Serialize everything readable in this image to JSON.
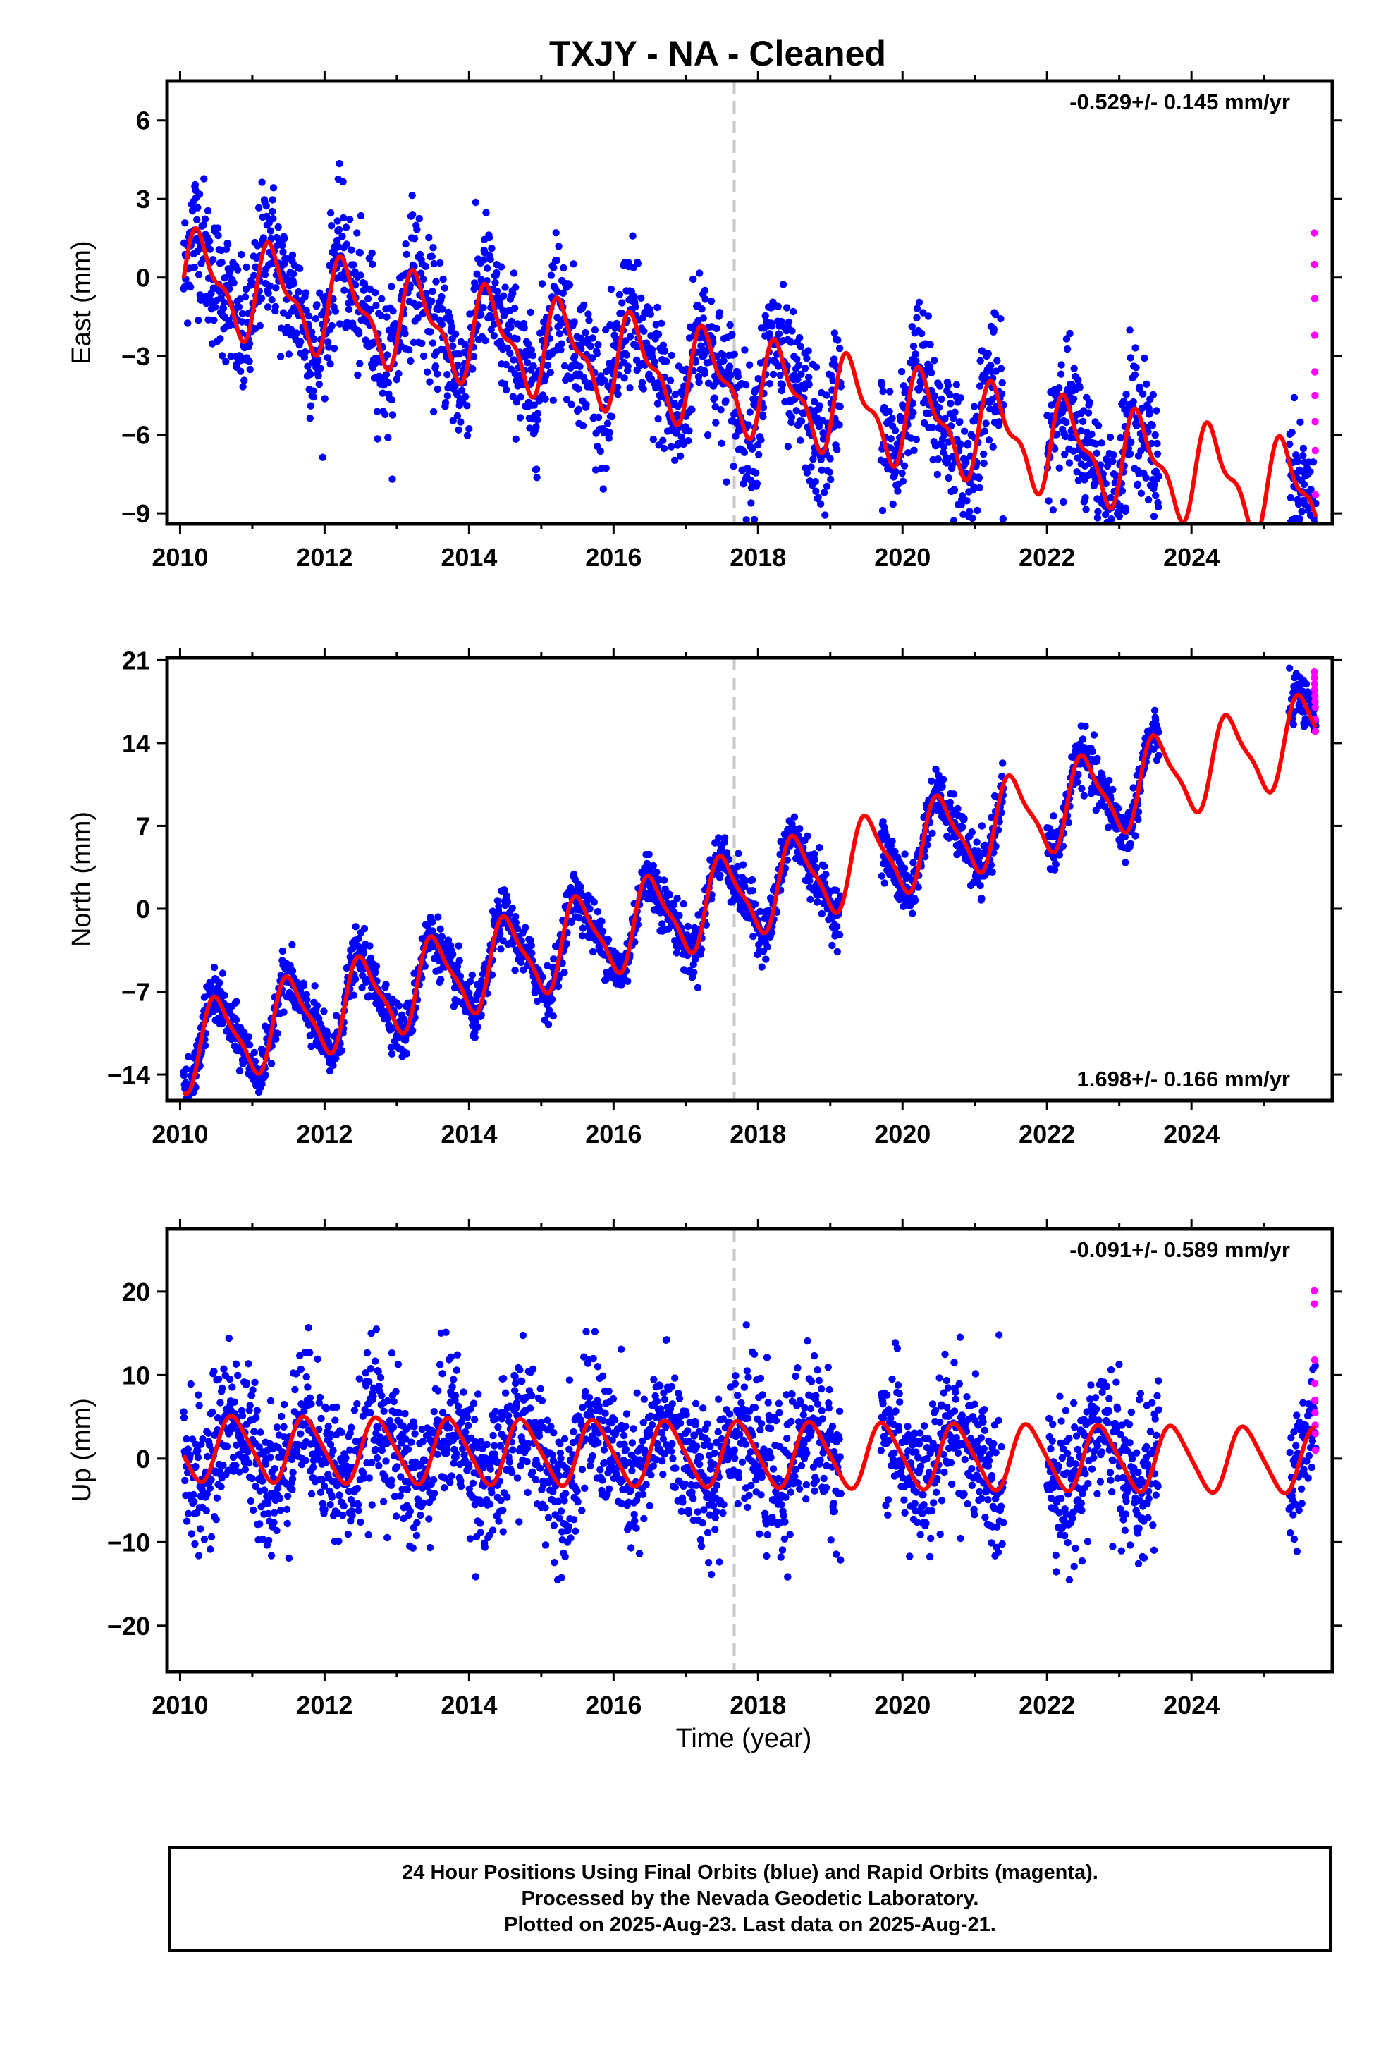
{
  "title": "TXJY  - NA - Cleaned",
  "xlabel": "Time (year)",
  "footer": {
    "line1": "24 Hour Positions Using Final Orbits (blue) and Rapid Orbits (magenta).",
    "line2": "Processed by the Nevada Geodetic Laboratory.",
    "line3": "Plotted on 2025-Aug-23. Last data on 2025-Aug-21."
  },
  "colors": {
    "final": "#0000ff",
    "rapid": "#ff00ff",
    "model": "#ff0000",
    "marker": "#c8c8c8"
  },
  "chart_data": [
    {
      "type": "scatter",
      "name": "east",
      "ylabel": "East (mm)",
      "rate": "-0.529+/- 0.145 mm/yr",
      "rate_position": "top-right",
      "xlim": [
        2009.82,
        2025.95
      ],
      "ylim": [
        -9.4,
        7.5
      ],
      "xticks": [
        2010,
        2012,
        2014,
        2016,
        2018,
        2020,
        2022,
        2024
      ],
      "yticks": [
        6,
        3,
        0,
        -3,
        -6,
        -9
      ],
      "marker_x": 2017.67,
      "model": {
        "offset": 0.0,
        "trend": -0.529,
        "annual_amp": 1.6,
        "annual_phase": 0.05,
        "semi_amp": 0.7
      },
      "gaps": [
        [
          2019.15,
          2019.7
        ],
        [
          2021.4,
          2022.0
        ],
        [
          2023.55,
          2025.35
        ]
      ],
      "scatter": 1.3,
      "rapid_values": [
        1.7,
        0.5,
        -0.8,
        -2.2,
        -3.6,
        -4.5,
        -5.5,
        -6.6,
        -8.3
      ]
    },
    {
      "type": "scatter",
      "name": "north",
      "ylabel": "North (mm)",
      "rate": "1.698+/- 0.166 mm/yr",
      "rate_position": "bottom-right",
      "xlim": [
        2009.82,
        2025.95
      ],
      "ylim": [
        -16.2,
        21.2
      ],
      "xticks": [
        2010,
        2012,
        2014,
        2016,
        2018,
        2020,
        2022,
        2024
      ],
      "yticks": [
        21,
        14,
        7,
        0,
        -7,
        -14
      ],
      "marker_x": 2017.67,
      "model": {
        "offset": -12.0,
        "trend": 1.698,
        "annual_amp": 3.4,
        "annual_phase": 0.28,
        "semi_amp": 0.9
      },
      "gaps": [
        [
          2019.15,
          2019.7
        ],
        [
          2021.4,
          2022.0
        ],
        [
          2023.55,
          2025.35
        ]
      ],
      "scatter": 1.1,
      "rapid_values": [
        20.0,
        19.5,
        19.0,
        18.5,
        18.0,
        17.5,
        17.0,
        16.0,
        15.0
      ]
    },
    {
      "type": "scatter",
      "name": "up",
      "ylabel": "Up (mm)",
      "rate": "-0.091+/- 0.589 mm/yr",
      "rate_position": "top-right",
      "xlim": [
        2009.82,
        2025.95
      ],
      "ylim": [
        -25.5,
        27.5
      ],
      "xticks": [
        2010,
        2012,
        2014,
        2016,
        2018,
        2020,
        2022,
        2024
      ],
      "yticks": [
        20,
        10,
        0,
        -10,
        -20
      ],
      "marker_x": 2017.67,
      "model": {
        "offset": 1.2,
        "trend": -0.091,
        "annual_amp": 3.8,
        "annual_phase": 0.5,
        "semi_amp": 0.6
      },
      "gaps": [
        [
          2019.15,
          2019.7
        ],
        [
          2021.4,
          2022.0
        ],
        [
          2023.55,
          2025.35
        ]
      ],
      "scatter": 4.3,
      "rapid_values": [
        20.1,
        18.5,
        11.8,
        9.0,
        7.0,
        5.5,
        4.0,
        3.0,
        1.0
      ]
    }
  ]
}
